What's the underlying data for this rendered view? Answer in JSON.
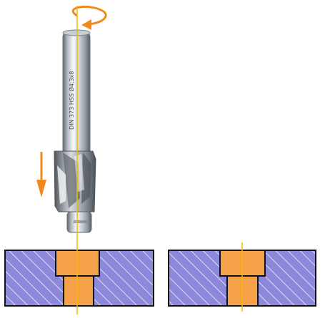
{
  "tool": {
    "engraving": "DIN 373 HSS Ø4,3x8",
    "icon": "counterbore-cutter"
  },
  "colors": {
    "axis_line": "#f5b800",
    "rotation_arrow": "#f08a1c",
    "feed_arrow": "#f08a1c",
    "hatch_fill": "#8d88d9",
    "hatch_line": "#ffffff",
    "counterbore_fill": "#f5a14a",
    "outline": "#111111",
    "steel_light": "#e9ecef",
    "steel_dark": "#6d747b"
  },
  "panels": [
    {
      "name": "left-section",
      "counterbore": true
    },
    {
      "name": "right-section",
      "counterbore": true
    }
  ]
}
